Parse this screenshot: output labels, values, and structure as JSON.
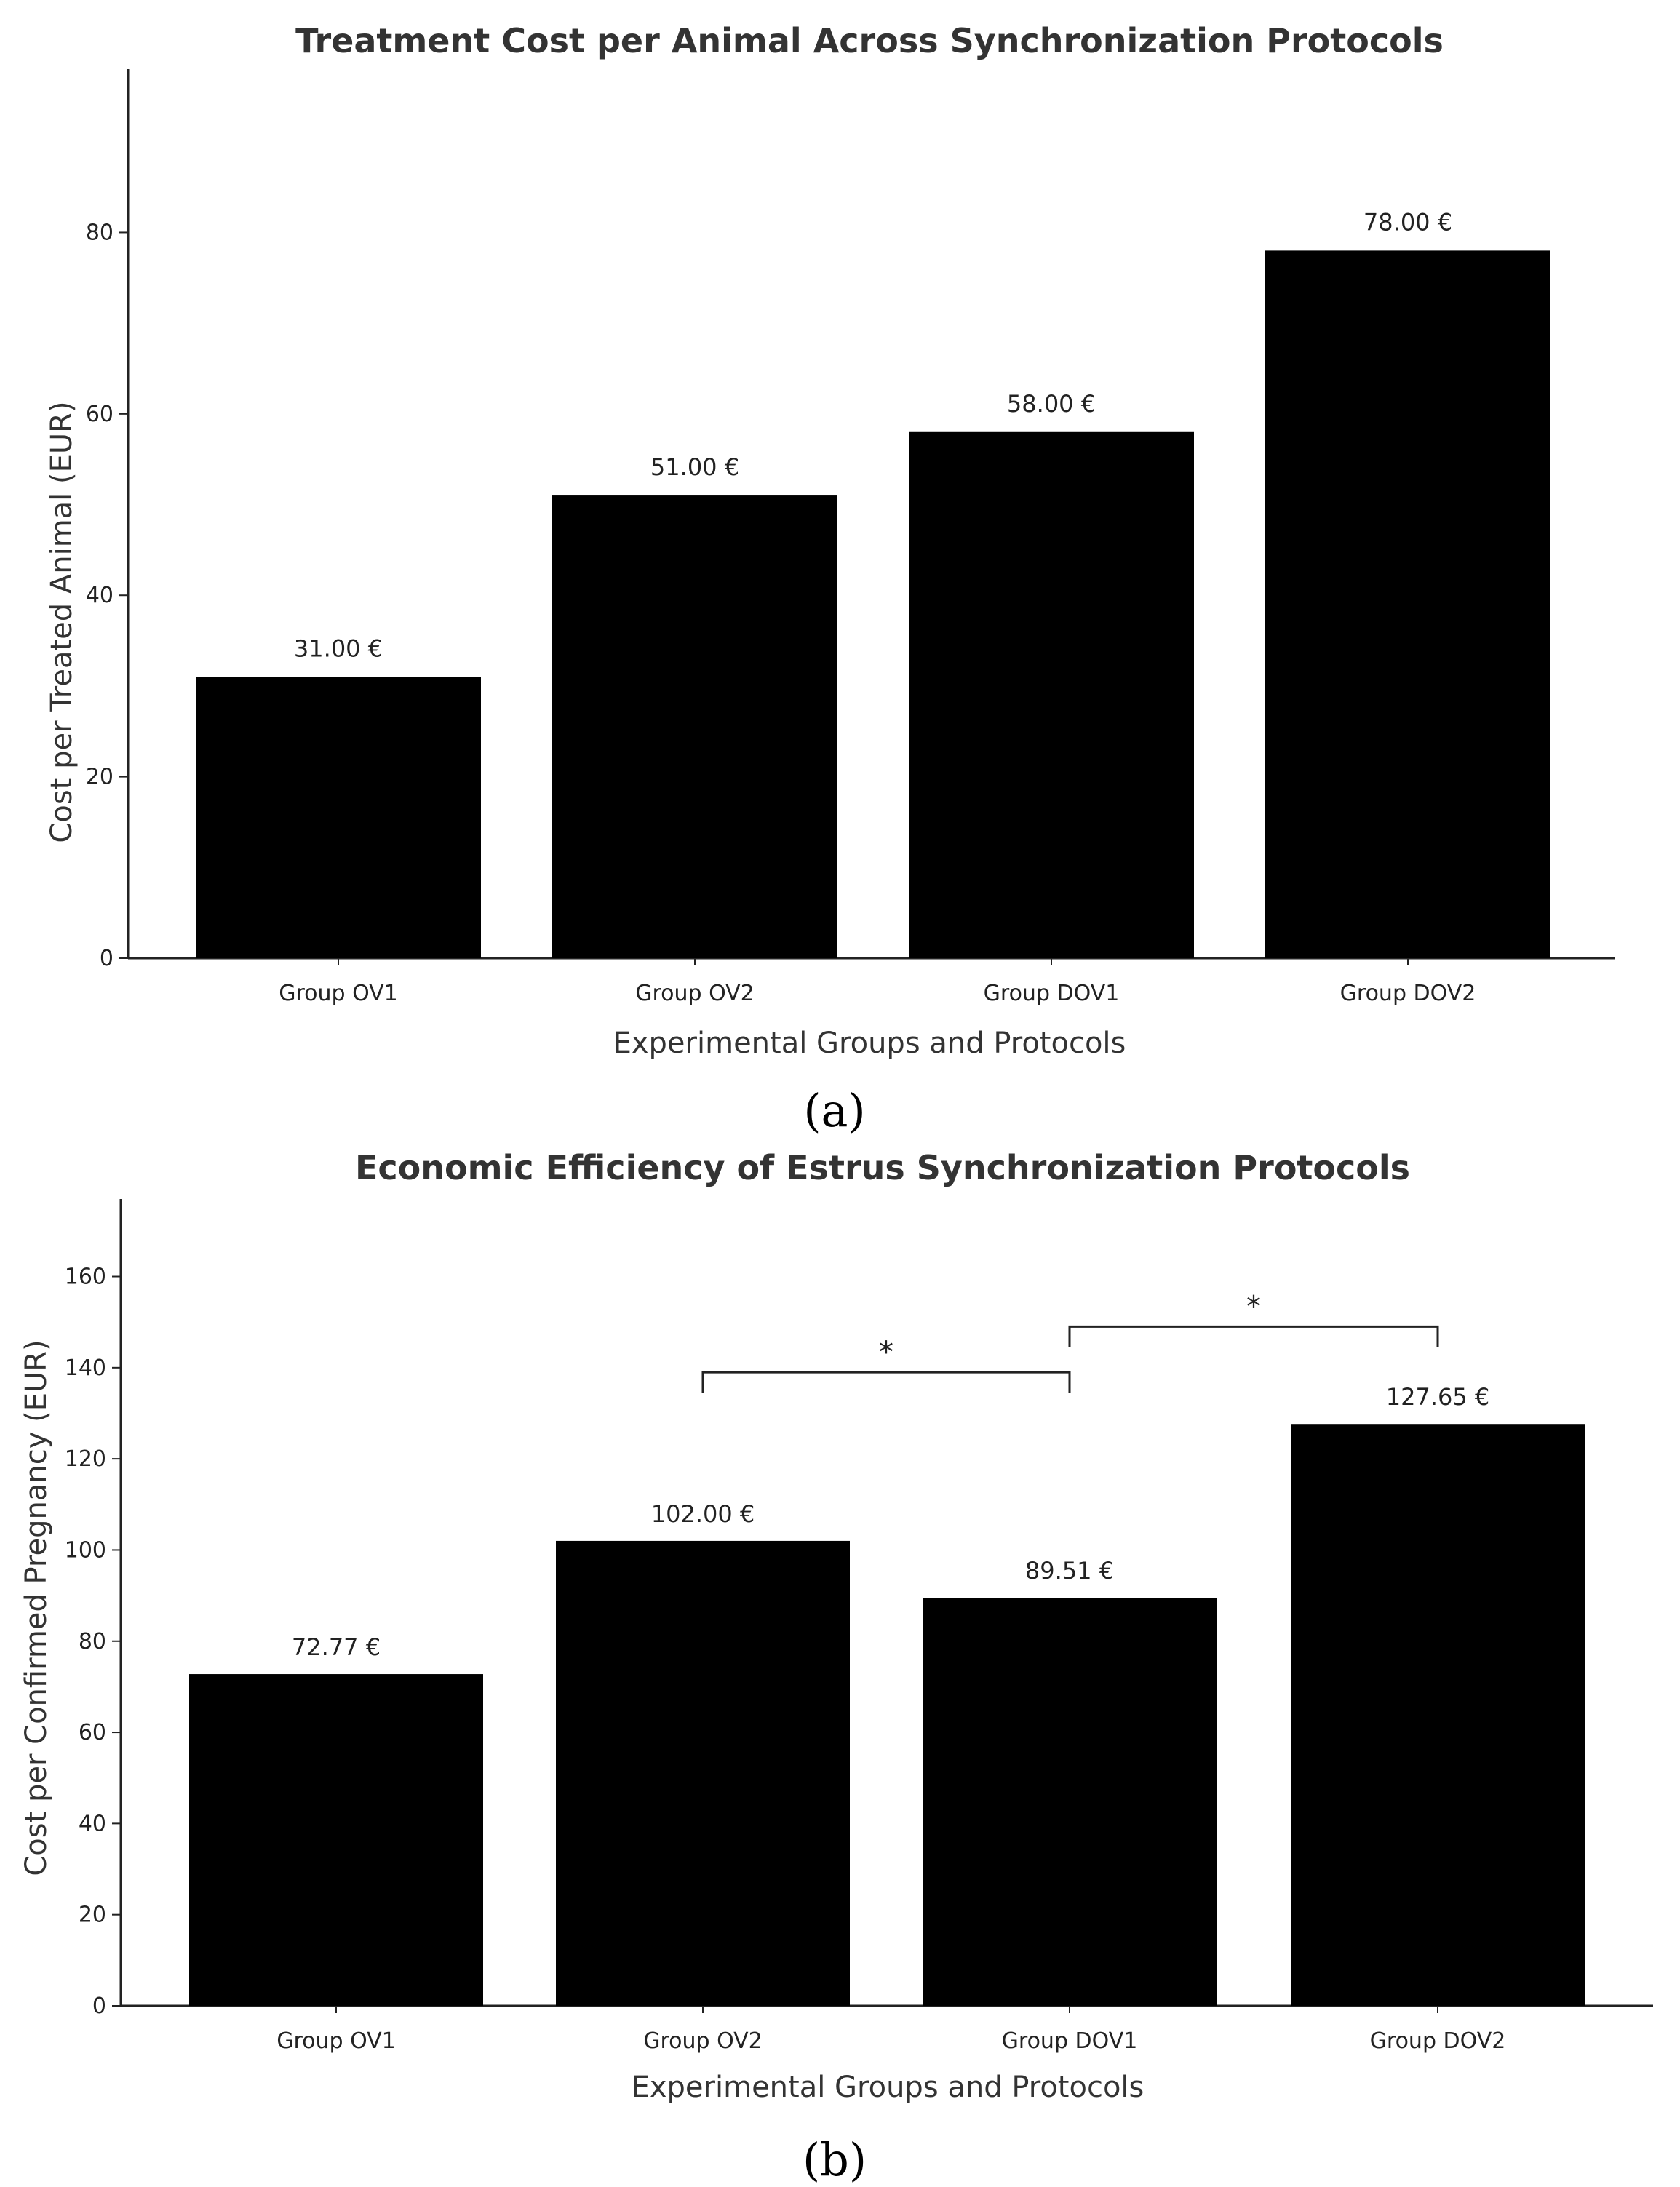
{
  "chart_data": [
    {
      "type": "bar",
      "title": "Treatment Cost per Animal Across Synchronization Protocols",
      "xlabel": "Experimental Groups and Protocols",
      "ylabel": "Cost per Treated Animal (EUR)",
      "categories": [
        "Group OV1",
        "Group OV2",
        "Group DOV1",
        "Group DOV2"
      ],
      "values": [
        31.0,
        51.0,
        58.0,
        78.0
      ],
      "value_labels": [
        "31.00 €",
        "51.00 €",
        "58.00 €",
        "78.00 €"
      ],
      "ylim": [
        0,
        98
      ],
      "yticks": [
        0,
        20,
        40,
        60,
        80
      ],
      "bar_color": "#000000",
      "panel_label": "(a)",
      "significance": []
    },
    {
      "type": "bar",
      "title": "Economic Efficiency of Estrus Synchronization Protocols",
      "xlabel": "Experimental Groups and Protocols",
      "ylabel": "Cost per Confirmed Pregnancy (EUR)",
      "categories": [
        "Group OV1",
        "Group OV2",
        "Group DOV1",
        "Group DOV2"
      ],
      "values": [
        72.77,
        102.0,
        89.51,
        127.65
      ],
      "value_labels": [
        "72.77 €",
        "102.00 €",
        "89.51 €",
        "127.65 €"
      ],
      "ylim": [
        0,
        177
      ],
      "yticks": [
        0,
        20,
        40,
        60,
        80,
        100,
        120,
        140,
        160
      ],
      "bar_color": "#000000",
      "panel_label": "(b)",
      "significance": [
        {
          "from": 1,
          "to": 2,
          "y": 139,
          "label": "*"
        },
        {
          "from": 2,
          "to": 3,
          "y": 149,
          "label": "*"
        }
      ]
    }
  ]
}
